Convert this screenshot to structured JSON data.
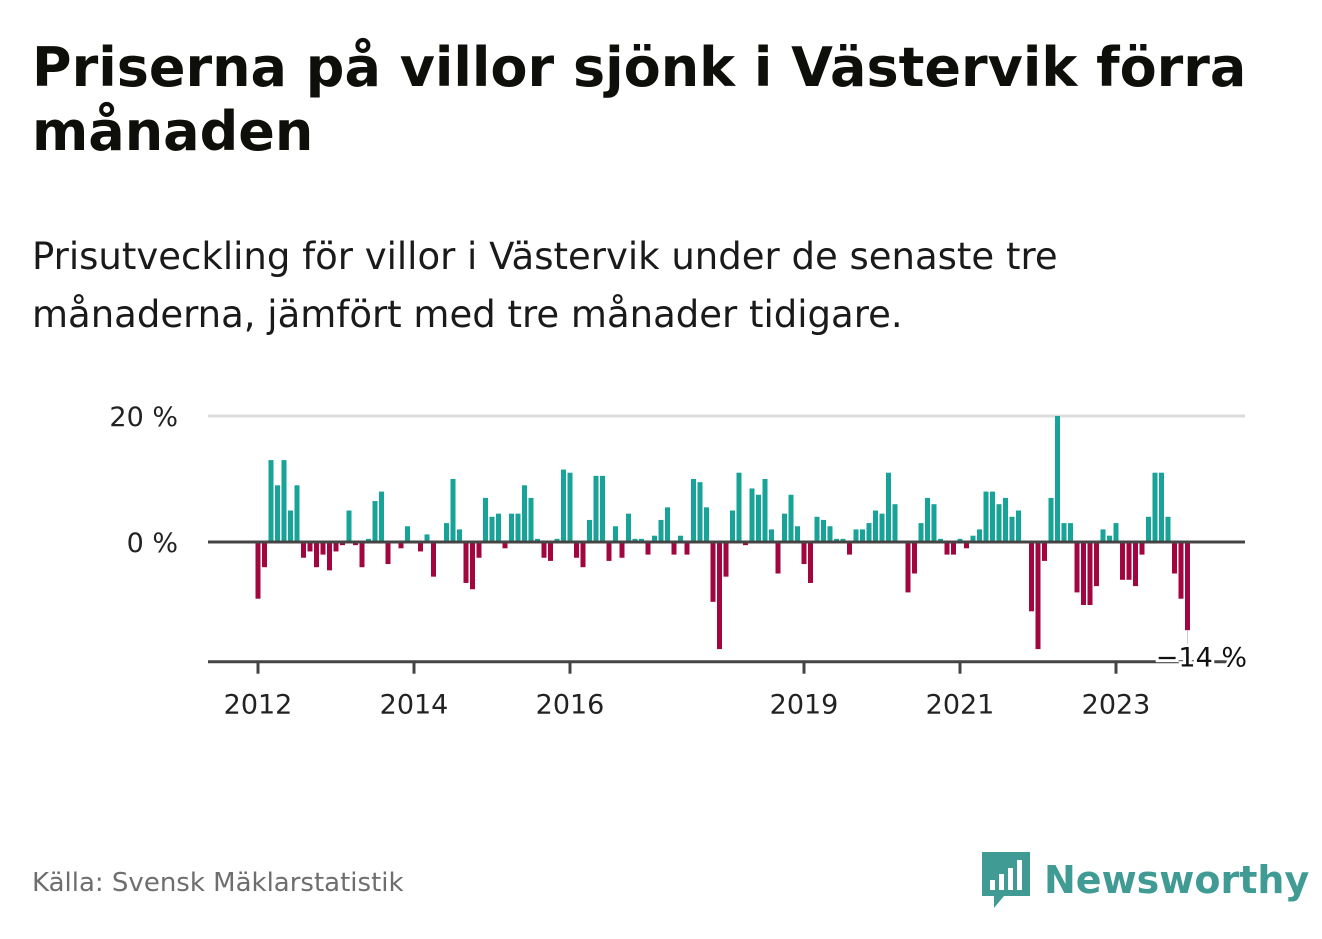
{
  "header": {
    "title": "Priserna på villor sjönk i Västervik förra månaden",
    "subtitle": "Prisutveckling för villor i Västervik under de senaste tre månaderna, jämfört med tre månader tidigare."
  },
  "footer": {
    "source": "Källa: Svensk Mäklarstatistik",
    "brand": "Newsworthy"
  },
  "colors": {
    "positive": "#17a397",
    "negative": "#a3063f",
    "gridline": "#dcdcdc",
    "zeroline": "#444444",
    "brand": "#3f9b93"
  },
  "chart_data": {
    "type": "bar",
    "title": "Prisutveckling för villor i Västervik",
    "unit": "%",
    "ylim": [
      -19,
      20
    ],
    "y_ticks": [
      {
        "value": 20,
        "label": "20 %"
      },
      {
        "value": 0,
        "label": "0 %"
      }
    ],
    "x_start": 2012.0,
    "x_step_months": 1,
    "x_ticks": [
      {
        "value": 2012,
        "label": "2012"
      },
      {
        "value": 2014,
        "label": "2014"
      },
      {
        "value": 2016,
        "label": "2016"
      },
      {
        "value": 2019,
        "label": "2019"
      },
      {
        "value": 2021,
        "label": "2021"
      },
      {
        "value": 2023,
        "label": "2023"
      }
    ],
    "last_value_label": "−14 %",
    "values": [
      -9,
      -4,
      13,
      9,
      13,
      5,
      9,
      -2.5,
      -1.5,
      -4,
      -2,
      -4.5,
      -1.5,
      -0.5,
      5,
      -0.5,
      -4,
      0.5,
      6.5,
      8,
      -3.5,
      0,
      -1,
      2.5,
      0,
      -1.5,
      1.2,
      -5.5,
      0,
      3,
      10,
      2,
      -6.5,
      -7.5,
      -2.5,
      7,
      4,
      4.5,
      -1,
      4.5,
      4.5,
      9,
      7,
      0.5,
      -2.5,
      -3,
      0.5,
      11.5,
      11,
      -2.5,
      -4,
      3.5,
      10.5,
      10.5,
      -3,
      2.5,
      -2.5,
      4.5,
      0.5,
      0.5,
      -2,
      1,
      3.5,
      5.5,
      -2,
      1,
      -2,
      10,
      9.5,
      5.5,
      -9.5,
      -17,
      -5.5,
      5,
      11,
      -0.5,
      8.5,
      7.5,
      10,
      2,
      -5,
      4.5,
      7.5,
      2.5,
      -3.5,
      -6.5,
      4,
      3.5,
      2.5,
      0.5,
      0.5,
      -2,
      2,
      2,
      3,
      5,
      4.5,
      11,
      6,
      0,
      -8,
      -5,
      3,
      7,
      6,
      0.5,
      -2,
      -2,
      0.5,
      -1,
      1,
      2,
      8,
      8,
      6,
      7,
      4,
      5,
      0,
      -11,
      -17,
      -3,
      7,
      20,
      3,
      3,
      -8,
      -10,
      -10,
      -7,
      2,
      1,
      3,
      -6,
      -6,
      -7,
      -2,
      4,
      11,
      11,
      4,
      -5,
      -9,
      -14
    ]
  }
}
